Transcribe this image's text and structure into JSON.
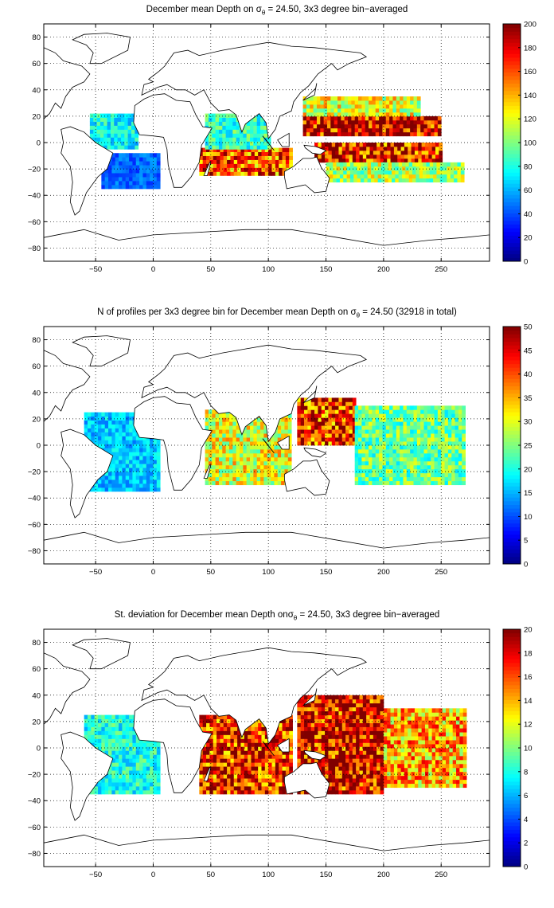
{
  "chart_data": [
    {
      "type": "heatmap",
      "title_prefix": "December mean Depth on ",
      "title_sigma": "σ",
      "title_sub": "θ",
      "title_suffix": " = 24.50, 3x3 degree bin−averaged",
      "xticks": [
        "−50",
        "0",
        "50",
        "100",
        "150",
        "200",
        "250"
      ],
      "xtick_values": [
        -50,
        0,
        50,
        100,
        150,
        200,
        250
      ],
      "yticks": [
        "80",
        "60",
        "40",
        "20",
        "0",
        "−20",
        "−40",
        "−60",
        "−80"
      ],
      "ytick_values": [
        80,
        60,
        40,
        20,
        0,
        -20,
        -40,
        -60,
        -80
      ],
      "xlim": [
        -95,
        292
      ],
      "ylim": [
        -90,
        90
      ],
      "colorbar_ticks": [
        "0",
        "20",
        "40",
        "60",
        "80",
        "100",
        "120",
        "140",
        "160",
        "180",
        "200"
      ],
      "colorbar_values": [
        0,
        20,
        40,
        60,
        80,
        100,
        120,
        140,
        160,
        180,
        200
      ],
      "clim": [
        0,
        200
      ],
      "colormap": "jet",
      "grid": true,
      "regions": [
        {
          "name": "tropical-pacific-core",
          "lon": [
            130,
            250
          ],
          "lat": [
            5,
            20
          ],
          "value": 185
        },
        {
          "name": "tropical-pacific-south",
          "lon": [
            140,
            250
          ],
          "lat": [
            -15,
            0
          ],
          "value": 175
        },
        {
          "name": "pacific-north-band",
          "lon": [
            130,
            230
          ],
          "lat": [
            20,
            35
          ],
          "value": 120
        },
        {
          "name": "pacific-south-band",
          "lon": [
            150,
            270
          ],
          "lat": [
            -30,
            -15
          ],
          "value": 110
        },
        {
          "name": "indian-ocean-south",
          "lon": [
            40,
            120
          ],
          "lat": [
            -25,
            -5
          ],
          "value": 160
        },
        {
          "name": "indian-ocean-north",
          "lon": [
            45,
            100
          ],
          "lat": [
            -5,
            20
          ],
          "value": 85
        },
        {
          "name": "atlantic-tropical",
          "lon": [
            -55,
            -15
          ],
          "lat": [
            -5,
            20
          ],
          "value": 75
        },
        {
          "name": "atlantic-south",
          "lon": [
            -45,
            5
          ],
          "lat": [
            -35,
            -10
          ],
          "value": 45
        }
      ]
    },
    {
      "type": "heatmap",
      "title_prefix": "N of profiles per 3x3 degree bin for December mean Depth on ",
      "title_sigma": "σ",
      "title_sub": "θ",
      "title_suffix": " = 24.50 (32918 in total)",
      "xticks": [
        "−50",
        "0",
        "50",
        "100",
        "150",
        "200",
        "250"
      ],
      "xtick_values": [
        -50,
        0,
        50,
        100,
        150,
        200,
        250
      ],
      "yticks": [
        "80",
        "60",
        "40",
        "20",
        "0",
        "−20",
        "−40",
        "−60",
        "−80"
      ],
      "ytick_values": [
        80,
        60,
        40,
        20,
        0,
        -20,
        -40,
        -60,
        -80
      ],
      "xlim": [
        -95,
        292
      ],
      "ylim": [
        -90,
        90
      ],
      "colorbar_ticks": [
        "0",
        "5",
        "10",
        "15",
        "20",
        "25",
        "30",
        "35",
        "40",
        "45",
        "50"
      ],
      "colorbar_values": [
        0,
        5,
        10,
        15,
        20,
        25,
        30,
        35,
        40,
        45,
        50
      ],
      "clim": [
        0,
        50
      ],
      "colormap": "jet",
      "grid": true,
      "regions": [
        {
          "name": "western-pacific",
          "lon": [
            125,
            175
          ],
          "lat": [
            0,
            35
          ],
          "value": 42
        },
        {
          "name": "pacific-open",
          "lon": [
            175,
            270
          ],
          "lat": [
            -30,
            30
          ],
          "value": 24
        },
        {
          "name": "indian-ocean",
          "lon": [
            45,
            120
          ],
          "lat": [
            -30,
            25
          ],
          "value": 30
        },
        {
          "name": "atlantic",
          "lon": [
            -60,
            5
          ],
          "lat": [
            -35,
            25
          ],
          "value": 16
        }
      ]
    },
    {
      "type": "heatmap",
      "title_prefix": "St. deviation for December mean Depth on",
      "title_sigma": "σ",
      "title_sub": "θ",
      "title_suffix": " = 24.50, 3x3 degree bin−averaged",
      "xticks": [
        "−50",
        "0",
        "50",
        "100",
        "150",
        "200",
        "250"
      ],
      "xtick_values": [
        -50,
        0,
        50,
        100,
        150,
        200,
        250
      ],
      "yticks": [
        "80",
        "60",
        "40",
        "20",
        "0",
        "−20",
        "−40",
        "−60",
        "−80"
      ],
      "ytick_values": [
        80,
        60,
        40,
        20,
        0,
        -20,
        -40,
        -60,
        -80
      ],
      "xlim": [
        -95,
        292
      ],
      "ylim": [
        -90,
        90
      ],
      "colorbar_ticks": [
        "0",
        "2",
        "4",
        "6",
        "8",
        "10",
        "12",
        "14",
        "16",
        "18",
        "20"
      ],
      "colorbar_values": [
        0,
        2,
        4,
        6,
        8,
        10,
        12,
        14,
        16,
        18,
        20
      ],
      "clim": [
        0,
        20
      ],
      "colormap": "jet",
      "grid": true,
      "regions": [
        {
          "name": "western-pacific",
          "lon": [
            125,
            200
          ],
          "lat": [
            -35,
            40
          ],
          "value": 18
        },
        {
          "name": "pacific-east",
          "lon": [
            200,
            270
          ],
          "lat": [
            -30,
            30
          ],
          "value": 14
        },
        {
          "name": "indian-ocean",
          "lon": [
            40,
            120
          ],
          "lat": [
            -35,
            25
          ],
          "value": 17
        },
        {
          "name": "atlantic",
          "lon": [
            -60,
            5
          ],
          "lat": [
            -35,
            25
          ],
          "value": 8
        }
      ]
    }
  ]
}
